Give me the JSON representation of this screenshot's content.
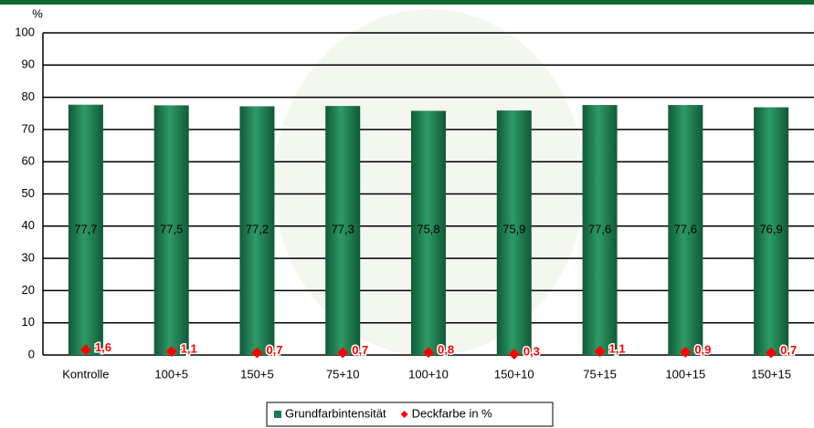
{
  "chart_data": {
    "type": "bar",
    "ylabel": "%",
    "categories": [
      "Kontrolle",
      "100+5",
      "150+5",
      "75+10",
      "100+10",
      "150+10",
      "75+15",
      "100+15",
      "150+15"
    ],
    "series": [
      {
        "name": "Grundfarbintensität",
        "type": "bar",
        "color": "#1e7a4f",
        "values": [
          77.7,
          77.5,
          77.2,
          77.3,
          75.8,
          75.9,
          77.6,
          77.6,
          76.9
        ],
        "value_labels": [
          "77,7",
          "77,5",
          "77,2",
          "77,3",
          "75,8",
          "75,9",
          "77,6",
          "77,6",
          "76,9"
        ]
      },
      {
        "name": "Deckfarbe in %",
        "type": "scatter",
        "color": "#ff0000",
        "values": [
          1.6,
          1.1,
          0.7,
          0.7,
          0.8,
          0.3,
          1.1,
          0.9,
          0.7
        ],
        "value_labels": [
          "1,6",
          "1,1",
          "0,7",
          "0,7",
          "0,8",
          "0,3",
          "1,1",
          "0,9",
          "0,7"
        ]
      }
    ],
    "ylim": [
      0,
      100
    ],
    "yticks": [
      0,
      10,
      20,
      30,
      40,
      50,
      60,
      70,
      80,
      90,
      100
    ],
    "grid": true,
    "legend": "bottom"
  }
}
